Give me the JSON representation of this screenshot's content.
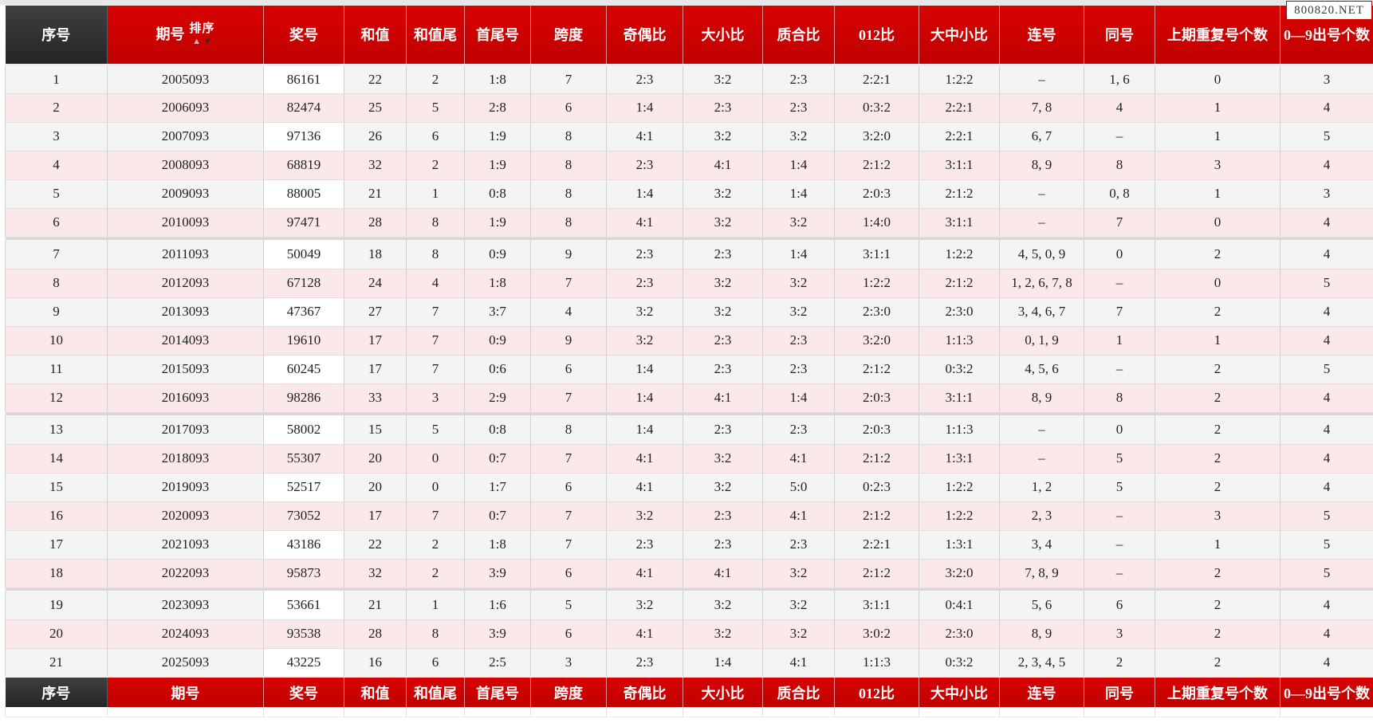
{
  "watermark": "800820.NET",
  "sort": {
    "label": "排序",
    "asc": "▲",
    "desc": "▼"
  },
  "colors": {
    "header_red": "#cc0000",
    "header_dark": "#2e2e2e",
    "row_gray": "#f4f4f4",
    "row_pink": "#fbe9e9",
    "prize_cell": "#ffffff",
    "header_text": "#ffffff"
  },
  "table": {
    "columns": [
      {
        "key": "seq",
        "label": "序号"
      },
      {
        "key": "issue",
        "label": "期号"
      },
      {
        "key": "prize",
        "label": "奖号"
      },
      {
        "key": "sum",
        "label": "和值"
      },
      {
        "key": "sum-tail",
        "label": "和值尾"
      },
      {
        "key": "first-last",
        "label": "首尾号"
      },
      {
        "key": "span",
        "label": "跨度"
      },
      {
        "key": "odd-even",
        "label": "奇偶比"
      },
      {
        "key": "big-small",
        "label": "大小比"
      },
      {
        "key": "prime-comp",
        "label": "质合比"
      },
      {
        "key": "ratio-012",
        "label": "012比"
      },
      {
        "key": "big-mid-small",
        "label": "大中小比"
      },
      {
        "key": "consecutive",
        "label": "连号"
      },
      {
        "key": "same-number",
        "label": "同号"
      },
      {
        "key": "prev-repeat",
        "label": "上期重复号个数"
      },
      {
        "key": "digit-count",
        "label": "0—9出号个数"
      }
    ],
    "group_breaks": [
      6,
      12,
      18
    ],
    "rows": [
      [
        "1",
        "2005093",
        "86161",
        "22",
        "2",
        "1:8",
        "7",
        "2:3",
        "3:2",
        "2:3",
        "2:2:1",
        "1:2:2",
        "–",
        "1, 6",
        "0",
        "3"
      ],
      [
        "2",
        "2006093",
        "82474",
        "25",
        "5",
        "2:8",
        "6",
        "1:4",
        "2:3",
        "2:3",
        "0:3:2",
        "2:2:1",
        "7, 8",
        "4",
        "1",
        "4"
      ],
      [
        "3",
        "2007093",
        "97136",
        "26",
        "6",
        "1:9",
        "8",
        "4:1",
        "3:2",
        "3:2",
        "3:2:0",
        "2:2:1",
        "6, 7",
        "–",
        "1",
        "5"
      ],
      [
        "4",
        "2008093",
        "68819",
        "32",
        "2",
        "1:9",
        "8",
        "2:3",
        "4:1",
        "1:4",
        "2:1:2",
        "3:1:1",
        "8, 9",
        "8",
        "3",
        "4"
      ],
      [
        "5",
        "2009093",
        "88005",
        "21",
        "1",
        "0:8",
        "8",
        "1:4",
        "3:2",
        "1:4",
        "2:0:3",
        "2:1:2",
        "–",
        "0, 8",
        "1",
        "3"
      ],
      [
        "6",
        "2010093",
        "97471",
        "28",
        "8",
        "1:9",
        "8",
        "4:1",
        "3:2",
        "3:2",
        "1:4:0",
        "3:1:1",
        "–",
        "7",
        "0",
        "4"
      ],
      [
        "7",
        "2011093",
        "50049",
        "18",
        "8",
        "0:9",
        "9",
        "2:3",
        "2:3",
        "1:4",
        "3:1:1",
        "1:2:2",
        "4, 5, 0, 9",
        "0",
        "2",
        "4"
      ],
      [
        "8",
        "2012093",
        "67128",
        "24",
        "4",
        "1:8",
        "7",
        "2:3",
        "3:2",
        "3:2",
        "1:2:2",
        "2:1:2",
        "1, 2, 6, 7, 8",
        "–",
        "0",
        "5"
      ],
      [
        "9",
        "2013093",
        "47367",
        "27",
        "7",
        "3:7",
        "4",
        "3:2",
        "3:2",
        "3:2",
        "2:3:0",
        "2:3:0",
        "3, 4, 6, 7",
        "7",
        "2",
        "4"
      ],
      [
        "10",
        "2014093",
        "19610",
        "17",
        "7",
        "0:9",
        "9",
        "3:2",
        "2:3",
        "2:3",
        "3:2:0",
        "1:1:3",
        "0, 1, 9",
        "1",
        "1",
        "4"
      ],
      [
        "11",
        "2015093",
        "60245",
        "17",
        "7",
        "0:6",
        "6",
        "1:4",
        "2:3",
        "2:3",
        "2:1:2",
        "0:3:2",
        "4, 5, 6",
        "–",
        "2",
        "5"
      ],
      [
        "12",
        "2016093",
        "98286",
        "33",
        "3",
        "2:9",
        "7",
        "1:4",
        "4:1",
        "1:4",
        "2:0:3",
        "3:1:1",
        "8, 9",
        "8",
        "2",
        "4"
      ],
      [
        "13",
        "2017093",
        "58002",
        "15",
        "5",
        "0:8",
        "8",
        "1:4",
        "2:3",
        "2:3",
        "2:0:3",
        "1:1:3",
        "–",
        "0",
        "2",
        "4"
      ],
      [
        "14",
        "2018093",
        "55307",
        "20",
        "0",
        "0:7",
        "7",
        "4:1",
        "3:2",
        "4:1",
        "2:1:2",
        "1:3:1",
        "–",
        "5",
        "2",
        "4"
      ],
      [
        "15",
        "2019093",
        "52517",
        "20",
        "0",
        "1:7",
        "6",
        "4:1",
        "3:2",
        "5:0",
        "0:2:3",
        "1:2:2",
        "1, 2",
        "5",
        "2",
        "4"
      ],
      [
        "16",
        "2020093",
        "73052",
        "17",
        "7",
        "0:7",
        "7",
        "3:2",
        "2:3",
        "4:1",
        "2:1:2",
        "1:2:2",
        "2, 3",
        "–",
        "3",
        "5"
      ],
      [
        "17",
        "2021093",
        "43186",
        "22",
        "2",
        "1:8",
        "7",
        "2:3",
        "2:3",
        "2:3",
        "2:2:1",
        "1:3:1",
        "3, 4",
        "–",
        "1",
        "5"
      ],
      [
        "18",
        "2022093",
        "95873",
        "32",
        "2",
        "3:9",
        "6",
        "4:1",
        "4:1",
        "3:2",
        "2:1:2",
        "3:2:0",
        "7, 8, 9",
        "–",
        "2",
        "5"
      ],
      [
        "19",
        "2023093",
        "53661",
        "21",
        "1",
        "1:6",
        "5",
        "3:2",
        "3:2",
        "3:2",
        "3:1:1",
        "0:4:1",
        "5, 6",
        "6",
        "2",
        "4"
      ],
      [
        "20",
        "2024093",
        "93538",
        "28",
        "8",
        "3:9",
        "6",
        "4:1",
        "3:2",
        "3:2",
        "3:0:2",
        "2:3:0",
        "8, 9",
        "3",
        "2",
        "4"
      ],
      [
        "21",
        "2025093",
        "43225",
        "16",
        "6",
        "2:5",
        "3",
        "2:3",
        "1:4",
        "4:1",
        "1:1:3",
        "0:3:2",
        "2, 3, 4, 5",
        "2",
        "2",
        "4"
      ]
    ]
  }
}
